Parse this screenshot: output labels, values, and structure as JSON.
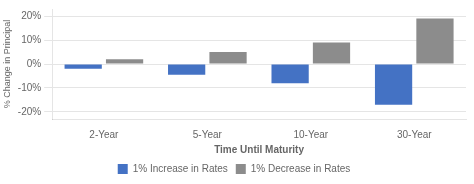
{
  "chart_data": {
    "type": "bar",
    "categories": [
      "2-Year",
      "5-Year",
      "10-Year",
      "30-Year"
    ],
    "series": [
      {
        "name": "1% Increase in Rates",
        "color": "#4472C4",
        "values": [
          -2.0,
          -4.5,
          -8.0,
          -17.0
        ]
      },
      {
        "name": "1% Decrease in Rates",
        "color": "#8C8C8C",
        "values": [
          2.0,
          5.0,
          9.0,
          19.0
        ]
      }
    ],
    "xlabel": "Time Until Maturity",
    "ylabel": "% Change in Principal",
    "ylim": [
      -23,
      23
    ],
    "yticks": [
      {
        "value": -20,
        "label": "-20%"
      },
      {
        "value": -10,
        "label": "-10%"
      },
      {
        "value": 0,
        "label": "0%"
      },
      {
        "value": 10,
        "label": "10%"
      },
      {
        "value": 20,
        "label": "20%"
      }
    ],
    "grid": true,
    "legend": "bottom"
  }
}
